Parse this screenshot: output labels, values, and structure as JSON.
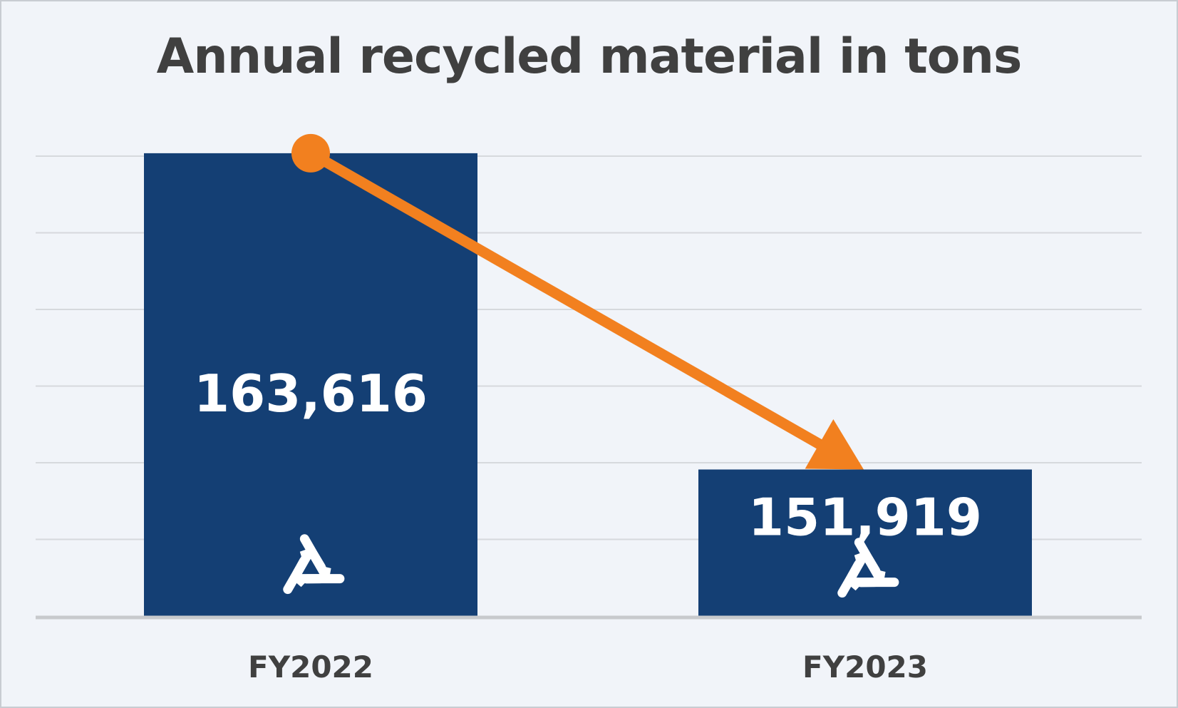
{
  "chart_data": {
    "type": "bar",
    "title": "Annual recycled material in tons",
    "categories": [
      "FY2022",
      "FY2023"
    ],
    "values": [
      163616,
      151919
    ],
    "data_labels": [
      "163,616",
      "151,919"
    ],
    "xlabel": "",
    "ylabel": "",
    "ylim": [
      146500,
      164800
    ],
    "grid": true,
    "legend": "none",
    "bar_color": "#143f74",
    "trend_arrow": {
      "from": "FY2022",
      "to": "FY2023",
      "color": "#f2801f"
    },
    "bar_icon": "recycle-icon"
  }
}
